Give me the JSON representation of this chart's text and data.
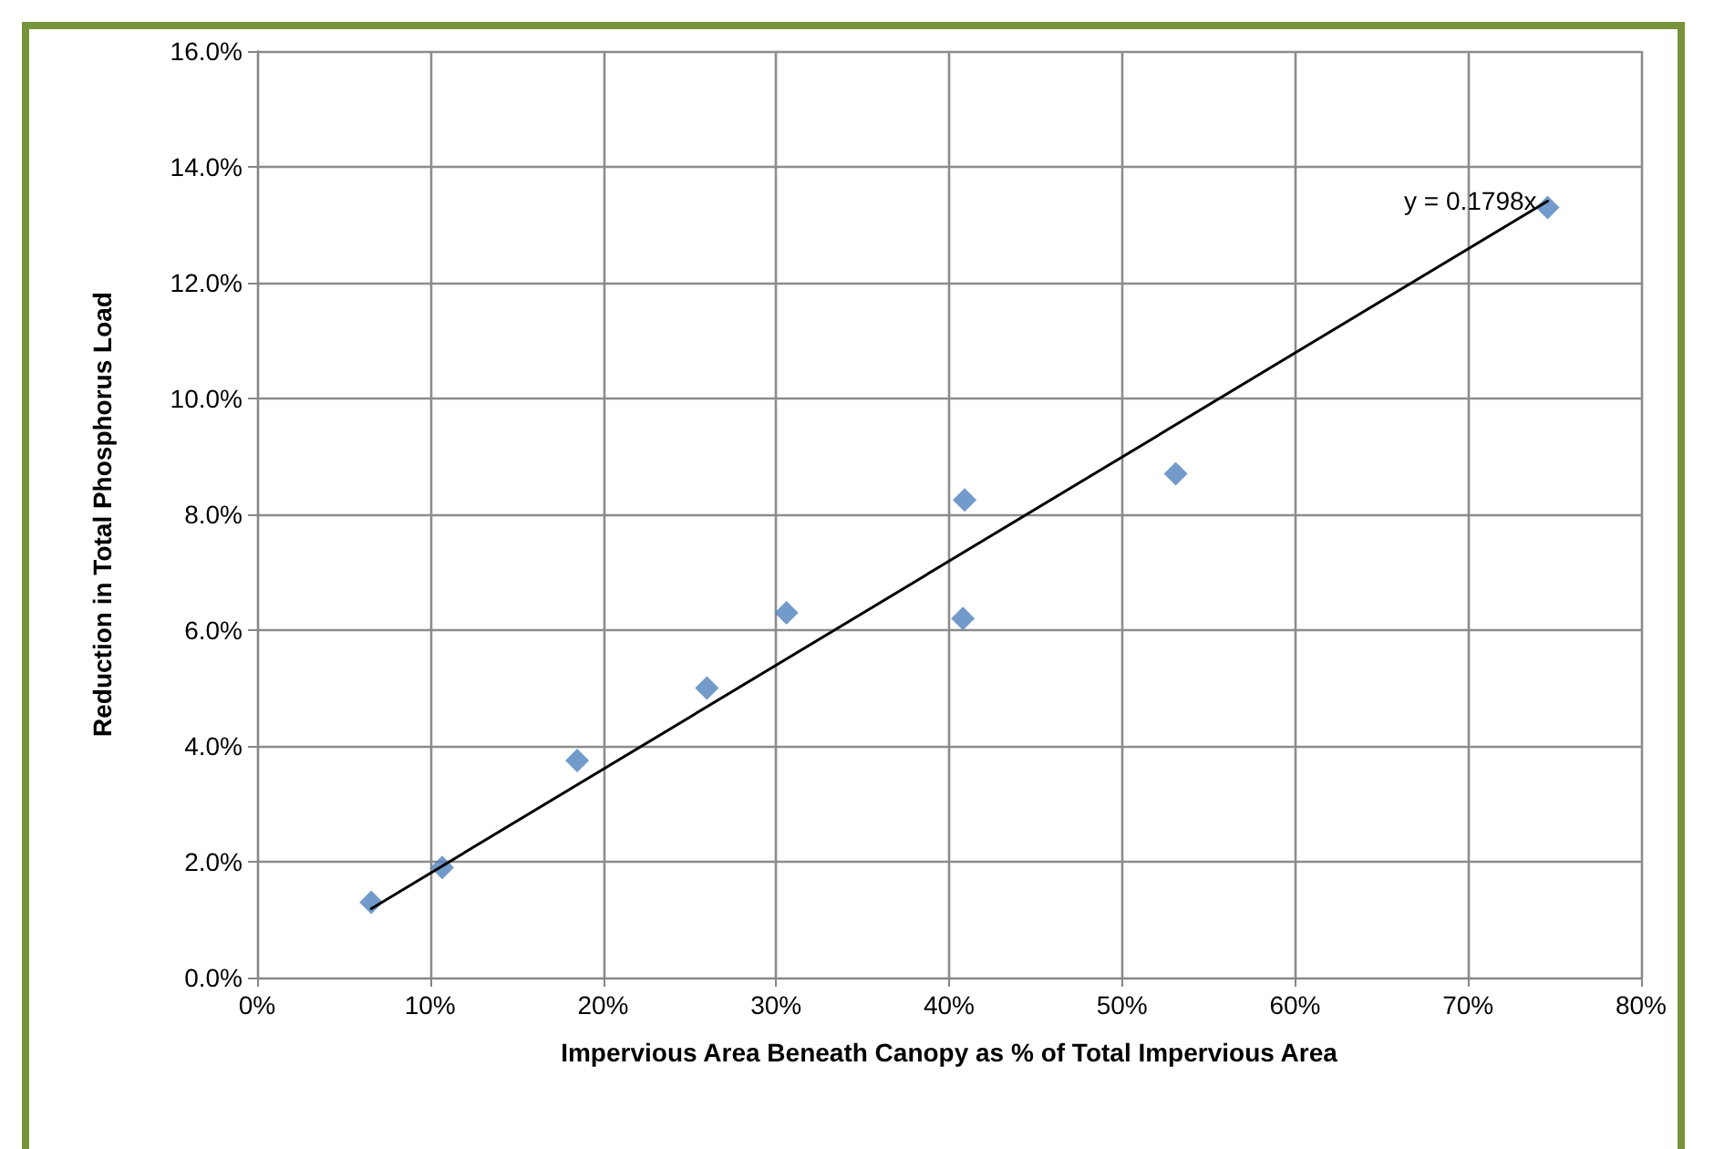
{
  "chart_data": {
    "type": "scatter",
    "xlabel": "Impervious Area Beneath Canopy as % of Total Impervious Area",
    "ylabel": "Reduction in Total Phosphorus Load",
    "series": [
      {
        "color": "#4f81bd",
        "marker": "diamond",
        "x": [
          6.6,
          10.7,
          18.5,
          26.0,
          30.6,
          40.9,
          40.8,
          53.1,
          74.6
        ],
        "values": [
          1.3,
          1.9,
          3.75,
          5.0,
          6.3,
          8.25,
          6.2,
          8.7,
          13.3
        ]
      },
      {
        "type": "line",
        "color": "#000000",
        "marker": "none",
        "x": [
          6.6,
          74.6
        ],
        "values": [
          1.19,
          13.41
        ]
      }
    ],
    "annotations": [
      "y = 0.1798x"
    ],
    "xlim": [
      0,
      80
    ],
    "xticks": [
      {
        "value": 0,
        "label": "0%"
      },
      {
        "value": 10,
        "label": "10%"
      },
      {
        "value": 20,
        "label": "20%"
      },
      {
        "value": 30,
        "label": "30%"
      },
      {
        "value": 40,
        "label": "40%"
      },
      {
        "value": 50,
        "label": "50%"
      },
      {
        "value": 60,
        "label": "60%"
      },
      {
        "value": 70,
        "label": "70%"
      },
      {
        "value": 80,
        "label": "80%"
      }
    ],
    "ylim": [
      0,
      16
    ],
    "yticks": [
      {
        "value": 0,
        "label": "0.0%"
      },
      {
        "value": 2,
        "label": "2.0%"
      },
      {
        "value": 4,
        "label": "4.0%"
      },
      {
        "value": 6,
        "label": "6.0%"
      },
      {
        "value": 8,
        "label": "8.0%"
      },
      {
        "value": 10,
        "label": "10.0%"
      },
      {
        "value": 12,
        "label": "12.0%"
      },
      {
        "value": 14,
        "label": "14.0%"
      },
      {
        "value": 16,
        "label": "16.0%"
      }
    ],
    "grid": true,
    "legend": false
  }
}
